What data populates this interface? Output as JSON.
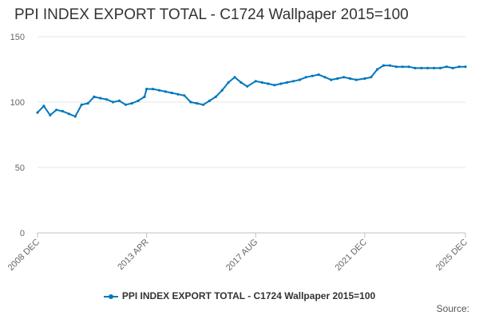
{
  "chart_data": {
    "type": "line",
    "title": "PPI INDEX EXPORT TOTAL - C1724 Wallpaper 2015=100",
    "xlabel": "",
    "ylabel": "",
    "ylim": [
      0,
      150
    ],
    "yticks": [
      "0",
      "50",
      "100",
      "150"
    ],
    "xticks": [
      "2008 DEC",
      "2013 APR",
      "2017 AUG",
      "2021 DEC",
      "2025 DEC"
    ],
    "grid": true,
    "legend_position": "bottom",
    "color": "#0077bb",
    "series": [
      {
        "name": "PPI INDEX EXPORT TOTAL - C1724 Wallpaper 2015=100",
        "x": [
          "2008-12",
          "2009-03",
          "2009-06",
          "2009-09",
          "2009-12",
          "2010-03",
          "2010-06",
          "2010-09",
          "2010-12",
          "2011-03",
          "2011-06",
          "2011-09",
          "2011-12",
          "2012-03",
          "2012-06",
          "2012-09",
          "2012-12",
          "2013-03",
          "2013-04",
          "2013-07",
          "2013-10",
          "2014-01",
          "2014-04",
          "2014-07",
          "2014-10",
          "2015-01",
          "2015-04",
          "2015-07",
          "2015-10",
          "2016-01",
          "2016-04",
          "2016-07",
          "2016-10",
          "2017-01",
          "2017-04",
          "2017-08",
          "2017-11",
          "2018-02",
          "2018-05",
          "2018-08",
          "2018-11",
          "2019-02",
          "2019-05",
          "2019-08",
          "2019-11",
          "2020-02",
          "2020-05",
          "2020-08",
          "2020-11",
          "2021-02",
          "2021-05",
          "2021-08",
          "2021-12",
          "2022-03",
          "2022-06",
          "2022-09",
          "2022-12",
          "2023-03",
          "2023-06",
          "2023-09",
          "2023-12",
          "2024-03",
          "2024-06",
          "2024-09",
          "2024-12",
          "2025-03",
          "2025-06",
          "2025-09",
          "2025-12"
        ],
        "values": [
          92,
          97,
          90,
          94,
          93,
          91,
          89,
          98,
          99,
          104,
          103,
          102,
          100,
          101,
          98,
          99,
          101,
          104,
          110,
          110,
          109,
          108,
          107,
          106,
          105,
          100,
          99,
          98,
          101,
          104,
          109,
          115,
          119,
          115,
          112,
          116,
          115,
          114,
          113,
          114,
          115,
          116,
          117,
          119,
          120,
          121,
          119,
          117,
          118,
          119,
          118,
          117,
          118,
          119,
          125,
          128,
          128,
          127,
          127,
          127,
          126,
          126,
          126,
          126,
          126,
          127,
          126,
          127,
          127
        ]
      }
    ]
  },
  "source_label": "Source:"
}
